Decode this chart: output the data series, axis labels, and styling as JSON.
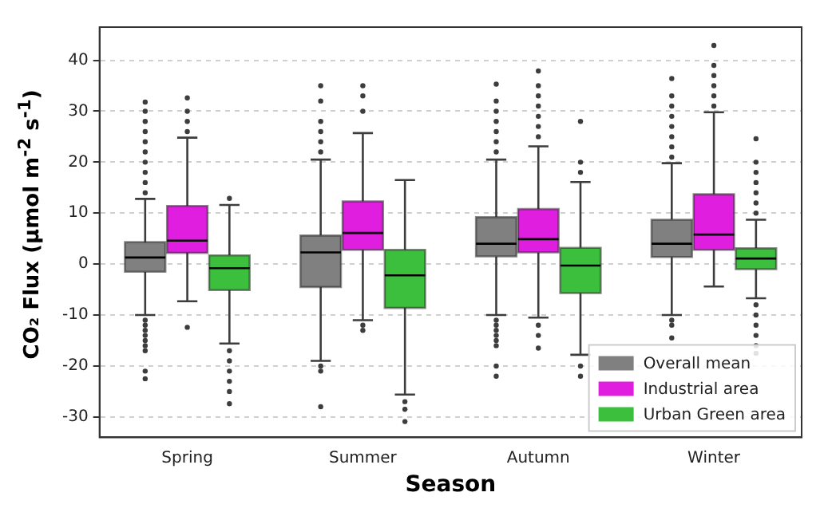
{
  "chart_data": {
    "type": "box",
    "xlabel": "Season",
    "ylabel": "CO₂ Flux (μmol m$^{-2}$ s$^{-1}$)",
    "categories": [
      "Spring",
      "Summer",
      "Autumn",
      "Winter"
    ],
    "ylim": [
      -34,
      46.5
    ],
    "yticks": [
      -30,
      -20,
      -10,
      0,
      10,
      20,
      30,
      40
    ],
    "grid": "y",
    "legend": "bottom right",
    "series": [
      {
        "name": "Overall mean",
        "color": "#808080",
        "boxes": [
          {
            "low": -10,
            "q1": -1.5,
            "median": 1.3,
            "q3": 4.3,
            "high": 12.8,
            "outliers": [
              14,
              16,
              18,
              20,
              22,
              24,
              26,
              28,
              30,
              31.8,
              -11,
              -12,
              -13,
              -14,
              -15,
              -16,
              -17,
              -21,
              -22.5
            ]
          },
          {
            "low": -19,
            "q1": -4.5,
            "median": 2.3,
            "q3": 5.6,
            "high": 20.5,
            "outliers": [
              22,
              24,
              26,
              28,
              32,
              35,
              -20,
              -21,
              -28
            ]
          },
          {
            "low": -10,
            "q1": 1.5,
            "median": 4,
            "q3": 9.2,
            "high": 20.5,
            "outliers": [
              22,
              24,
              26,
              28,
              30,
              32,
              35.3,
              -11,
              -12,
              -13,
              -14,
              -15,
              -16,
              -20,
              -22
            ]
          },
          {
            "low": -10,
            "q1": 1.4,
            "median": 4,
            "q3": 8.7,
            "high": 19.8,
            "outliers": [
              21,
              23,
              25,
              27,
              29,
              31,
              33,
              36.4,
              -11,
              -12,
              -14.5
            ]
          }
        ]
      },
      {
        "name": "Industrial area",
        "color": "#e01ee0",
        "boxes": [
          {
            "low": -7.3,
            "q1": 2.2,
            "median": 4.6,
            "q3": 11.4,
            "high": 24.8,
            "outliers": [
              26,
              28,
              30,
              32.6,
              -12.4
            ]
          },
          {
            "low": -11,
            "q1": 2.8,
            "median": 6.1,
            "q3": 12.3,
            "high": 25.7,
            "outliers": [
              30,
              33,
              35,
              -12,
              -13
            ]
          },
          {
            "low": -10.5,
            "q1": 2.3,
            "median": 4.9,
            "q3": 10.8,
            "high": 23.1,
            "outliers": [
              25,
              27,
              29,
              31,
              33,
              35,
              37.9,
              -12,
              -14,
              -16.5
            ]
          },
          {
            "low": -4.4,
            "q1": 2.8,
            "median": 5.8,
            "q3": 13.7,
            "high": 29.8,
            "outliers": [
              31,
              33,
              35,
              37,
              39,
              42.9
            ]
          }
        ]
      },
      {
        "name": "Urban Green area",
        "color": "#3cbf3c",
        "boxes": [
          {
            "low": -15.6,
            "q1": -5.1,
            "median": -0.8,
            "q3": 1.7,
            "high": 11.6,
            "outliers": [
              12.9,
              -17,
              -19,
              -21,
              -23,
              -25,
              -27.4
            ]
          },
          {
            "low": -25.6,
            "q1": -8.6,
            "median": -2.2,
            "q3": 2.8,
            "high": 16.5,
            "outliers": [
              -27,
              -28.5,
              -30.9
            ]
          },
          {
            "low": -17.8,
            "q1": -5.7,
            "median": -0.3,
            "q3": 3.2,
            "high": 16.1,
            "outliers": [
              18,
              20,
              28,
              -20,
              -22
            ]
          },
          {
            "low": -6.7,
            "q1": -1,
            "median": 1.1,
            "q3": 3.1,
            "high": 8.7,
            "outliers": [
              10,
              12,
              14,
              16,
              18,
              20,
              24.6,
              -8,
              -10,
              -12,
              -14,
              -16,
              -17.5
            ]
          }
        ]
      }
    ]
  }
}
